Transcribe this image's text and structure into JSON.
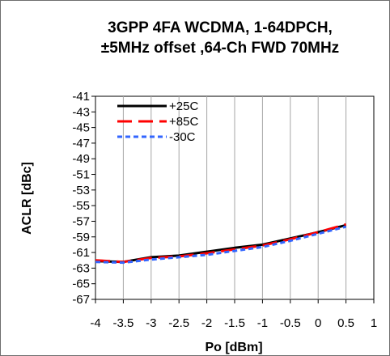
{
  "chart_data": {
    "type": "line",
    "title_lines": [
      "3GPP 4FA  WCDMA, 1-64DPCH,",
      "±5MHz offset ,64-Ch FWD 70MHz"
    ],
    "xlabel": "Po [dBm]",
    "ylabel": "ACLR [dBc]",
    "xlim": [
      -4,
      1
    ],
    "ylim": [
      -67,
      -41
    ],
    "x_ticks": [
      -4,
      -3.5,
      -3,
      -2.5,
      -2,
      -1.5,
      -1,
      -0.5,
      0,
      0.5,
      1
    ],
    "y_ticks": [
      -41,
      -43,
      -45,
      -47,
      -49,
      -51,
      -53,
      -55,
      -57,
      -59,
      -61,
      -63,
      -65,
      -67
    ],
    "x_tick_labels": [
      "-4",
      "-3.5",
      "-3",
      "-2.5",
      "-2",
      "-1.5",
      "-1",
      "-0.5",
      "0",
      "0.5",
      "1"
    ],
    "y_tick_labels": [
      "-41",
      "-43",
      "-45",
      "-47",
      "-49",
      "-51",
      "-53",
      "-55",
      "-57",
      "-59",
      "-61",
      "-63",
      "-65",
      "-67"
    ],
    "grid": "vertical",
    "legend_position": "top-left",
    "x": [
      -4,
      -3.5,
      -3,
      -2.5,
      -2,
      -1.5,
      -1,
      -0.5,
      0,
      0.5
    ],
    "series": [
      {
        "name": "+25C",
        "color": "#000000",
        "dash": "solid",
        "values": [
          -62.1,
          -62.2,
          -61.6,
          -61.4,
          -60.9,
          -60.4,
          -60.0,
          -59.2,
          -58.4,
          -57.5
        ]
      },
      {
        "name": "+85C",
        "color": "#ff0000",
        "dash": "long-dash",
        "values": [
          -62.0,
          -62.2,
          -61.7,
          -61.5,
          -61.1,
          -60.6,
          -60.1,
          -59.3,
          -58.4,
          -57.4
        ]
      },
      {
        "name": "-30C",
        "color": "#3366ff",
        "dash": "short-dash",
        "values": [
          -62.2,
          -62.3,
          -61.9,
          -61.6,
          -61.3,
          -60.8,
          -60.3,
          -59.5,
          -58.6,
          -57.7
        ]
      }
    ]
  }
}
